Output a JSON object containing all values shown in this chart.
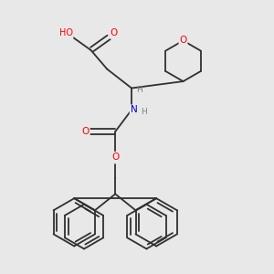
{
  "background_color": "#e8e8e8",
  "atom_colors": {
    "O": "#ff0000",
    "N": "#0000cc",
    "H": "#808080"
  },
  "bond_color": "#303030",
  "lw": 1.3
}
